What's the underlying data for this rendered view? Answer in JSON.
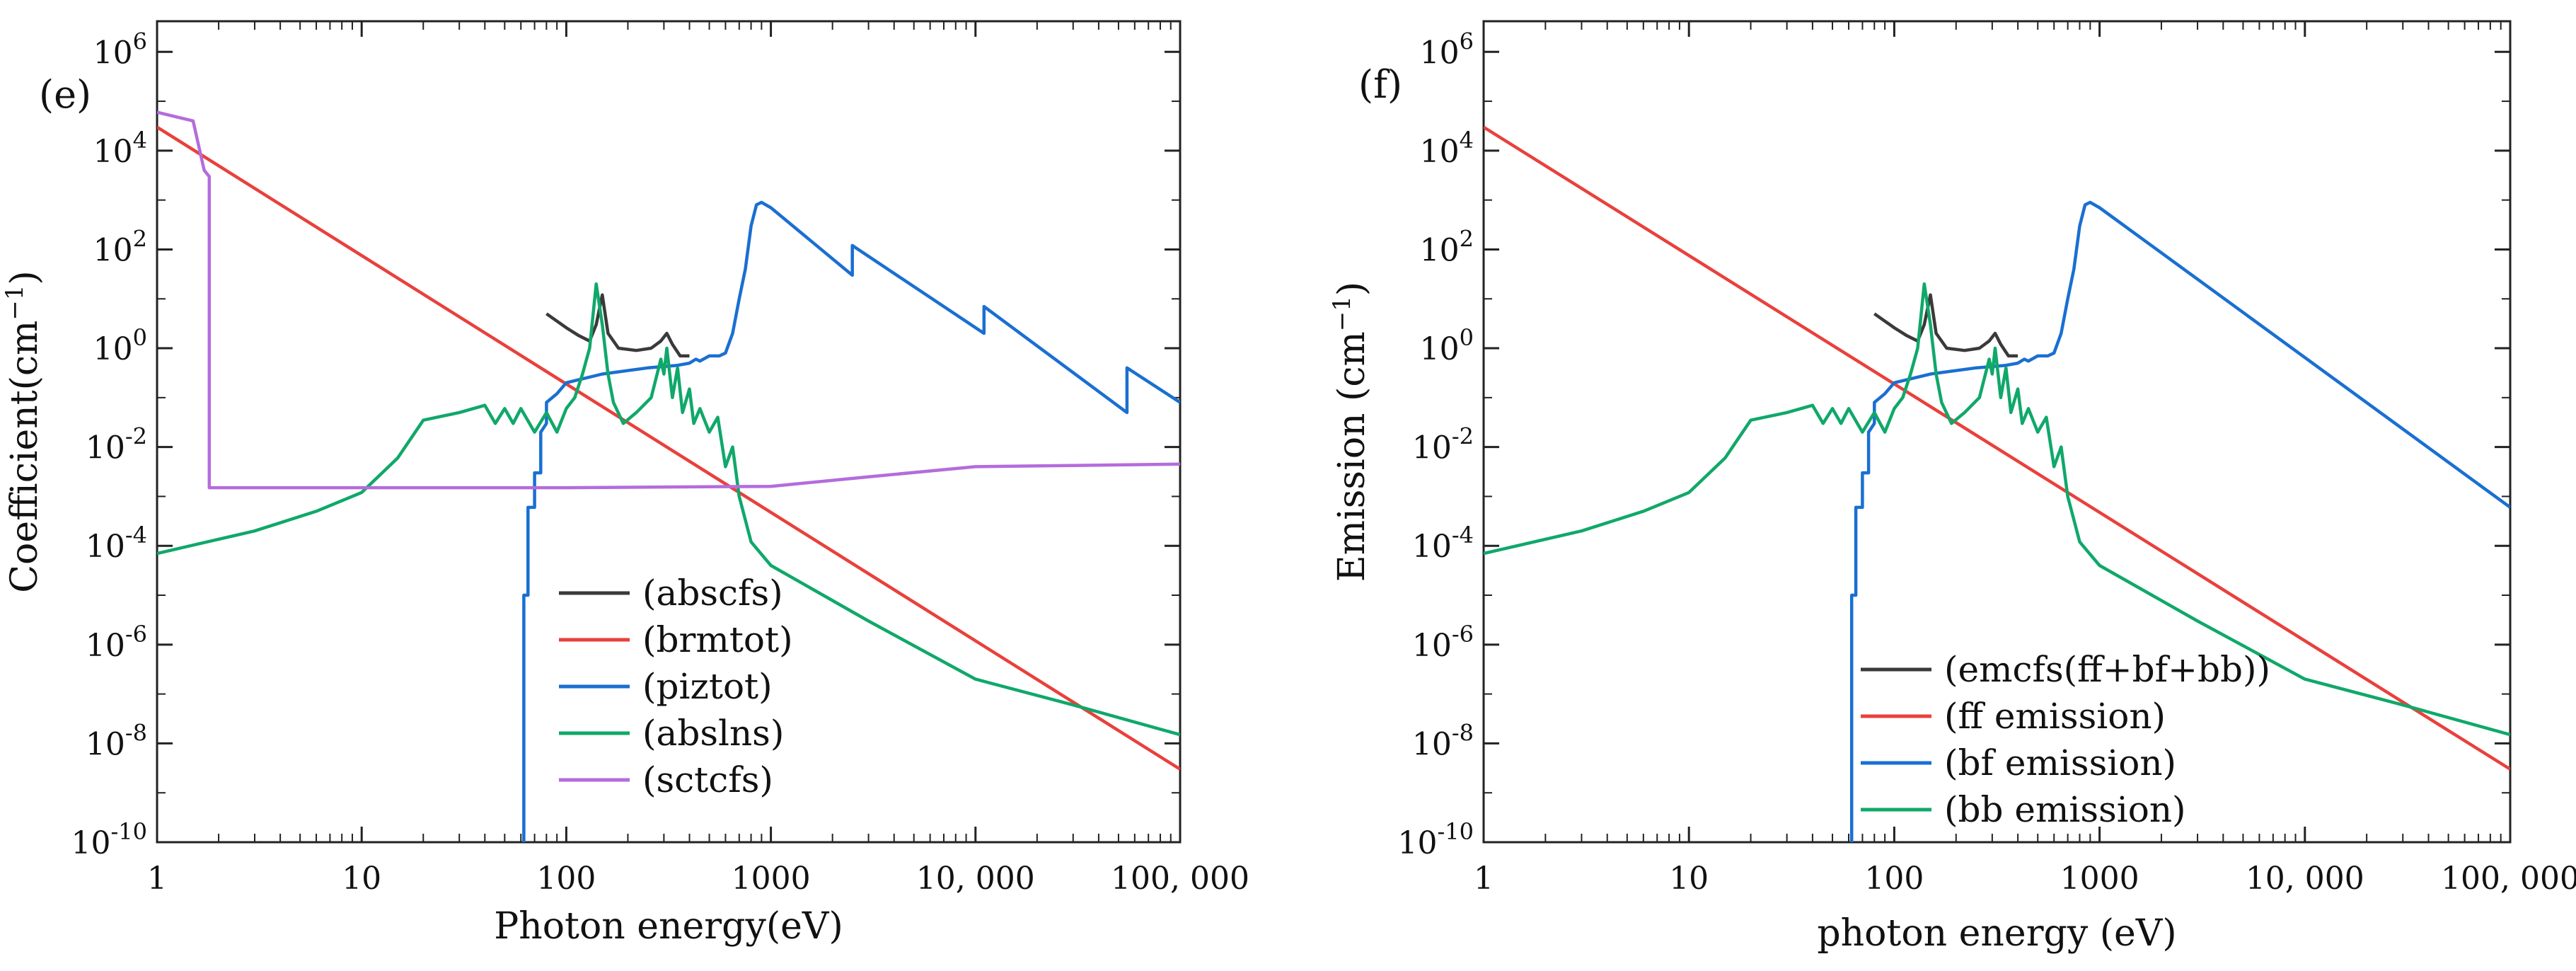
{
  "panels": [
    {
      "label": "(e)",
      "xlabel": "Photon energy(eV)",
      "ylabel": "Coefficient(cm",
      "ylabel_sup": "−1",
      "ylabel_close": ")",
      "legend": [
        "(abscfs)",
        "(brmtot)",
        "(piztot)",
        "(abslns)",
        "(sctcfs)"
      ]
    },
    {
      "label": "(f)",
      "xlabel": "photon energy (eV)",
      "ylabel": "Emission (cm",
      "ylabel_sup": "−1",
      "ylabel_close": ")",
      "legend": [
        "(emcfs(ff+bf+bb))",
        "(ff emission)",
        "(bf emission)",
        "(bb emission)"
      ]
    }
  ],
  "xticks": [
    "1",
    "10",
    "100",
    "1000",
    "10, 000",
    "100, 000"
  ],
  "yticks": [
    {
      "base": "10",
      "exp": "6"
    },
    {
      "base": "10",
      "exp": "4"
    },
    {
      "base": "10",
      "exp": "2"
    },
    {
      "base": "10",
      "exp": "0"
    },
    {
      "base": "10",
      "exp": "-2"
    },
    {
      "base": "10",
      "exp": "-4"
    },
    {
      "base": "10",
      "exp": "-6"
    },
    {
      "base": "10",
      "exp": "-8"
    },
    {
      "base": "10",
      "exp": "-10"
    }
  ],
  "chart_data": [
    {
      "type": "line",
      "title": "(e)",
      "xlabel": "Photon energy(eV)",
      "ylabel": "Coefficient(cm−1)",
      "xscale": "log",
      "yscale": "log",
      "xlim": [
        1,
        100000
      ],
      "ylim": [
        1e-10,
        1000000.0
      ],
      "legend_position": "bottom-center",
      "series": [
        {
          "name": "(abscfs)",
          "color": "#3a3a3a",
          "x": [
            80,
            100,
            115,
            130,
            140,
            150,
            160,
            180,
            220,
            260,
            290,
            310,
            330,
            360,
            400
          ],
          "y": [
            5.0,
            2.6,
            1.8,
            1.4,
            3.0,
            12.0,
            2.0,
            1.0,
            0.9,
            1.0,
            1.4,
            2.0,
            1.2,
            0.7,
            0.7
          ]
        },
        {
          "name": "(brmtot)",
          "color": "#e8413c",
          "x": [
            1,
            100000
          ],
          "y": [
            30000,
            3e-09
          ]
        },
        {
          "name": "(piztot)",
          "color": "#1a6fd1",
          "x": [
            62,
            62,
            65,
            65,
            70,
            70,
            75,
            75,
            80,
            80,
            90,
            100,
            150,
            250,
            350,
            400,
            430,
            450,
            500,
            560,
            600,
            650,
            700,
            750,
            800,
            850,
            900,
            1000,
            2500,
            2500,
            11000,
            11000,
            55000,
            55000,
            100000
          ],
          "y": [
            1e-10,
            1e-05,
            1e-05,
            0.0006,
            0.0006,
            0.003,
            0.003,
            0.02,
            0.03,
            0.08,
            0.12,
            0.2,
            0.3,
            0.4,
            0.45,
            0.5,
            0.6,
            0.55,
            0.7,
            0.7,
            0.8,
            2.0,
            10,
            40,
            300,
            800,
            900,
            700,
            30,
            120,
            2,
            7,
            0.05,
            0.4,
            0.08
          ]
        },
        {
          "name": "(abslns)",
          "color": "#10a86a",
          "x": [
            1,
            3,
            6,
            10,
            15,
            20,
            30,
            40,
            45,
            50,
            55,
            60,
            70,
            80,
            90,
            100,
            110,
            120,
            130,
            140,
            150,
            160,
            170,
            190,
            220,
            260,
            290,
            300,
            310,
            330,
            350,
            370,
            400,
            420,
            450,
            500,
            550,
            600,
            650,
            700,
            800,
            1000,
            3000,
            10000,
            30000,
            100000
          ],
          "y": [
            7e-05,
            0.0002,
            0.0005,
            0.0012,
            0.006,
            0.035,
            0.05,
            0.07,
            0.03,
            0.06,
            0.03,
            0.06,
            0.02,
            0.05,
            0.02,
            0.06,
            0.1,
            0.3,
            1.0,
            20,
            3.0,
            0.3,
            0.08,
            0.03,
            0.05,
            0.1,
            0.6,
            0.3,
            1.0,
            0.1,
            0.4,
            0.05,
            0.15,
            0.03,
            0.06,
            0.02,
            0.04,
            0.004,
            0.01,
            0.001,
            0.00012,
            4e-05,
            3e-06,
            2e-07,
            6e-08,
            1.5e-08
          ]
        },
        {
          "name": "(sctcfs)",
          "color": "#b46cdc",
          "x": [
            1,
            1.5,
            1.7,
            1.8,
            1.8,
            2.0,
            10,
            100,
            1000,
            3000,
            10000,
            100000
          ],
          "y": [
            60000,
            40000,
            4000,
            3000,
            0.0015,
            0.0015,
            0.0015,
            0.0015,
            0.0016,
            0.0025,
            0.004,
            0.0045
          ]
        }
      ]
    },
    {
      "type": "line",
      "title": "(f)",
      "xlabel": "photon energy (eV)",
      "ylabel": "Emission (cm−1)",
      "xscale": "log",
      "yscale": "log",
      "xlim": [
        1,
        100000
      ],
      "ylim": [
        1e-10,
        1000000.0
      ],
      "legend_position": "bottom-right",
      "series": [
        {
          "name": "(emcfs(ff+bf+bb))",
          "color": "#3a3a3a",
          "x": [
            80,
            100,
            115,
            130,
            140,
            150,
            160,
            180,
            220,
            260,
            290,
            310,
            330,
            360,
            400
          ],
          "y": [
            5.0,
            2.6,
            1.8,
            1.4,
            3.0,
            12.0,
            2.0,
            1.0,
            0.9,
            1.0,
            1.4,
            2.0,
            1.2,
            0.7,
            0.7
          ]
        },
        {
          "name": "(ff emission)",
          "color": "#e8413c",
          "x": [
            1,
            100000
          ],
          "y": [
            30000,
            3e-09
          ]
        },
        {
          "name": "(bf emission)",
          "color": "#1a6fd1",
          "x": [
            62,
            62,
            65,
            65,
            70,
            70,
            75,
            75,
            80,
            80,
            90,
            100,
            150,
            250,
            350,
            400,
            430,
            450,
            500,
            560,
            600,
            650,
            700,
            750,
            800,
            850,
            900,
            1000,
            100000
          ],
          "y": [
            1e-10,
            1e-05,
            1e-05,
            0.0006,
            0.0006,
            0.003,
            0.003,
            0.02,
            0.03,
            0.08,
            0.12,
            0.2,
            0.3,
            0.4,
            0.45,
            0.5,
            0.6,
            0.55,
            0.7,
            0.7,
            0.8,
            2.0,
            10,
            40,
            300,
            800,
            900,
            700,
            0.0006
          ]
        },
        {
          "name": "(bb emission)",
          "color": "#10a86a",
          "x": [
            1,
            3,
            6,
            10,
            15,
            20,
            30,
            40,
            45,
            50,
            55,
            60,
            70,
            80,
            90,
            100,
            110,
            120,
            130,
            140,
            150,
            160,
            170,
            190,
            220,
            260,
            290,
            300,
            310,
            330,
            350,
            370,
            400,
            420,
            450,
            500,
            550,
            600,
            650,
            700,
            800,
            1000,
            3000,
            10000,
            30000,
            100000
          ],
          "y": [
            7e-05,
            0.0002,
            0.0005,
            0.0012,
            0.006,
            0.035,
            0.05,
            0.07,
            0.03,
            0.06,
            0.03,
            0.06,
            0.02,
            0.05,
            0.02,
            0.06,
            0.1,
            0.3,
            1.0,
            20,
            3.0,
            0.3,
            0.08,
            0.03,
            0.05,
            0.1,
            0.6,
            0.3,
            1.0,
            0.1,
            0.4,
            0.05,
            0.15,
            0.03,
            0.06,
            0.02,
            0.04,
            0.004,
            0.01,
            0.001,
            0.00012,
            4e-05,
            3e-06,
            2e-07,
            6e-08,
            1.5e-08
          ]
        }
      ]
    }
  ]
}
